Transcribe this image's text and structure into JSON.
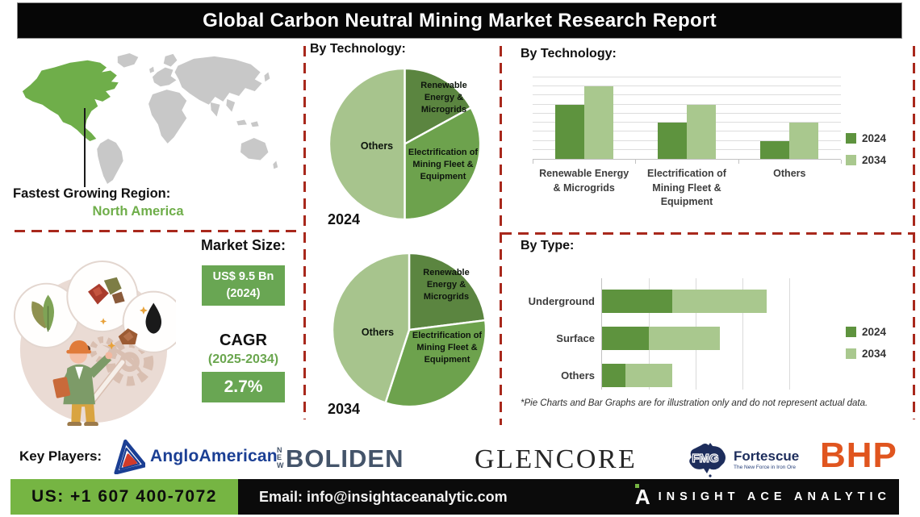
{
  "title": "Global Carbon Neutral Mining Market Research Report",
  "region_callout": {
    "label": "Fastest Growing Region:",
    "value": "North America"
  },
  "market_size": {
    "heading": "Market Size:",
    "value_primary": "US$ 9.5 Bn",
    "value_secondary": "(2024)",
    "cagr_heading": "CAGR",
    "cagr_period": "(2025-2034)",
    "cagr_value": "2.7%"
  },
  "sections": {
    "pie_title": "By Technology:",
    "bar_title": "By Technology:",
    "type_title": "By Type:",
    "footnote": "*Pie Charts and Bar Graphs are for illustration only and do not represent actual data."
  },
  "chart_data": [
    {
      "id": "pie-2024",
      "type": "pie",
      "title": "By Technology:",
      "year_label": "2024",
      "slices": [
        {
          "label": "Renewable Energy & Microgrids",
          "value": 17,
          "color": "#5b8540"
        },
        {
          "label": "Electrification of Mining Fleet & Equipment",
          "value": 33,
          "color": "#6da24d"
        },
        {
          "label": "Others",
          "value": 50,
          "color": "#a7c48d"
        }
      ]
    },
    {
      "id": "pie-2034",
      "type": "pie",
      "title": "By Technology:",
      "year_label": "2034",
      "slices": [
        {
          "label": "Renewable Energy & Microgrids",
          "value": 23,
          "color": "#5b8540"
        },
        {
          "label": "Electrification of Mining Fleet & Equipment",
          "value": 32,
          "color": "#6da24d"
        },
        {
          "label": "Others",
          "value": 45,
          "color": "#a7c48d"
        }
      ]
    },
    {
      "id": "bar-technology",
      "type": "bar",
      "title": "By Technology:",
      "categories": [
        "Renewable Energy & Microgrids",
        "Electrification of Mining Fleet & Equipment",
        "Others"
      ],
      "series": [
        {
          "name": "2024",
          "color": "#5e933e",
          "values": [
            6,
            4,
            2
          ]
        },
        {
          "name": "2034",
          "color": "#a9c88e",
          "values": [
            8,
            6,
            4
          ]
        }
      ],
      "ylim": [
        0,
        9
      ],
      "grid": true,
      "legend_position": "right"
    },
    {
      "id": "stacked-type",
      "type": "bar",
      "orientation": "horizontal",
      "stacked": true,
      "title": "By Type:",
      "categories": [
        "Underground",
        "Surface",
        "Others"
      ],
      "series": [
        {
          "name": "2024",
          "color": "#5e933e",
          "values": [
            1.5,
            1.0,
            0.5
          ]
        },
        {
          "name": "2034",
          "color": "#a9c88e",
          "values": [
            2.0,
            1.5,
            1.0
          ]
        }
      ],
      "xlim": [
        0,
        4
      ],
      "grid": true,
      "legend_position": "right"
    }
  ],
  "key_players": {
    "label": "Key Players:",
    "players": [
      {
        "name": "AngloAmerican"
      },
      {
        "name": "BOLIDEN",
        "prefix": "NEW"
      },
      {
        "name": "GLENCORE"
      },
      {
        "name": "Fortescue",
        "logo_text": "FMG",
        "tagline": "The New Force in Iron Ore"
      },
      {
        "name": "BHP"
      }
    ]
  },
  "footer": {
    "phone": "US: +1 607 400-7072",
    "email": "Email: info@insightaceanalytic.com",
    "brand": "INSIGHT ACE ANALYTIC",
    "brand_monogram": "A"
  },
  "colors": {
    "pie_dark_green": "#5b8540",
    "pie_mid_green": "#6da24d",
    "pie_light_green": "#a7c48d",
    "map_highlight_green": "#6fae4a",
    "value_box_green": "#69a653",
    "footer_green": "#76b543",
    "dash_red": "#a8281c",
    "bhp_orange": "#e0551f",
    "anglo_navy": "#1b3f94",
    "boliden_slate": "#44546a",
    "fortescue_navy": "#1d2d5c"
  }
}
